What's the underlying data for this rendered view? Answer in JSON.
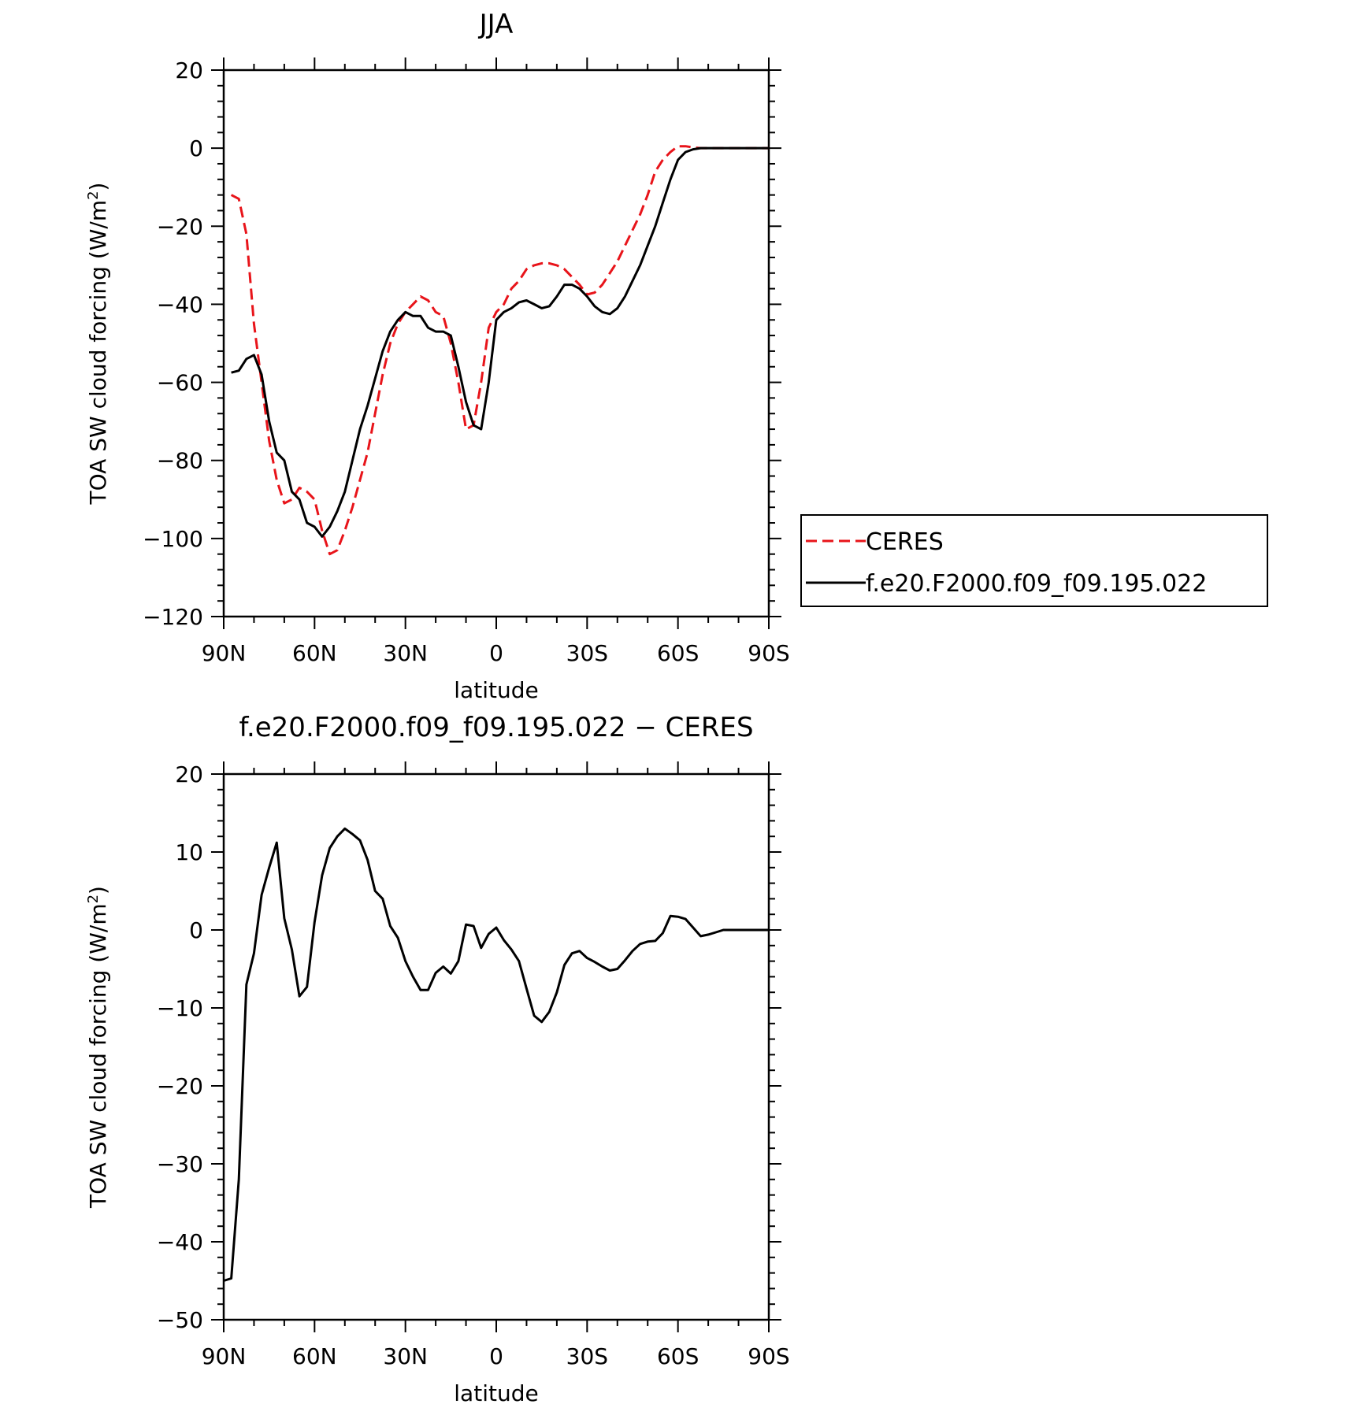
{
  "chart_data": [
    {
      "type": "line",
      "title": "JJA",
      "xlabel": "latitude",
      "ylabel": "TOA SW cloud forcing (W/m²)",
      "ylabel_main": "TOA SW cloud forcing (W/m",
      "ylabel_sup": "2",
      "ylabel_end": ")",
      "xlim": [
        90,
        -90
      ],
      "ylim": [
        -120,
        20
      ],
      "xticks": [
        90,
        60,
        30,
        0,
        -30,
        -60,
        -90
      ],
      "xtick_labels": [
        "90N",
        "60N",
        "30N",
        "0",
        "30S",
        "60S",
        "90S"
      ],
      "yticks": [
        20,
        0,
        -20,
        -40,
        -60,
        -80,
        -100,
        -120
      ],
      "ytick_labels": [
        "20",
        "0",
        "−20",
        "−40",
        "−60",
        "−80",
        "−100",
        "−120"
      ],
      "legend_position": "right",
      "series": [
        {
          "name": "CERES",
          "color": "#e8141a",
          "dash": "dashed",
          "x": [
            87.5,
            85,
            82.5,
            80,
            77.5,
            75,
            72.5,
            70,
            67.5,
            65,
            62.5,
            60,
            57.5,
            55,
            52.5,
            50,
            47.5,
            45,
            42.5,
            40,
            37.5,
            35,
            32.5,
            30,
            27.5,
            25,
            22.5,
            20,
            17.5,
            15,
            12.5,
            10,
            7.5,
            5,
            2.5,
            0,
            -2.5,
            -5,
            -7.5,
            -10,
            -12.5,
            -15,
            -17.5,
            -20,
            -22.5,
            -25,
            -27.5,
            -30,
            -32.5,
            -35,
            -37.5,
            -40,
            -42.5,
            -45,
            -47.5,
            -50,
            -52.5,
            -55,
            -57.5,
            -60,
            -62.5,
            -65,
            -67.5,
            -70,
            -72.5,
            -75,
            -77.5,
            -80,
            -82.5,
            -85,
            -87.5,
            -90
          ],
          "values": [
            -12,
            -13,
            -22,
            -45,
            -60,
            -75,
            -85,
            -91,
            -90,
            -87,
            -88,
            -90,
            -98,
            -104,
            -103,
            -98,
            -92,
            -85,
            -78,
            -68,
            -58,
            -50,
            -45,
            -42,
            -40,
            -38,
            -39,
            -42,
            -43,
            -50,
            -60,
            -72,
            -71,
            -60,
            -46,
            -42,
            -40,
            -36,
            -34,
            -31,
            -30,
            -29.5,
            -29.5,
            -30,
            -31,
            -33,
            -35,
            -37.5,
            -37,
            -35,
            -32,
            -29,
            -25,
            -21,
            -17,
            -12,
            -6,
            -3,
            -1,
            0.5,
            0.5,
            0.2,
            0,
            0,
            0,
            0,
            0,
            0,
            0,
            0,
            0,
            0
          ]
        },
        {
          "name": "f.e20.F2000.f09_f09.195.022",
          "color": "#000000",
          "dash": "solid",
          "x": [
            87.5,
            85,
            82.5,
            80,
            77.5,
            75,
            72.5,
            70,
            67.5,
            65,
            62.5,
            60,
            57.5,
            55,
            52.5,
            50,
            47.5,
            45,
            42.5,
            40,
            37.5,
            35,
            32.5,
            30,
            27.5,
            25,
            22.5,
            20,
            17.5,
            15,
            12.5,
            10,
            7.5,
            5,
            2.5,
            0,
            -2.5,
            -5,
            -7.5,
            -10,
            -12.5,
            -15,
            -17.5,
            -20,
            -22.5,
            -25,
            -27.5,
            -30,
            -32.5,
            -35,
            -37.5,
            -40,
            -42.5,
            -45,
            -47.5,
            -50,
            -52.5,
            -55,
            -57.5,
            -60,
            -62.5,
            -65,
            -67.5,
            -70,
            -72.5,
            -75,
            -77.5,
            -80,
            -82.5,
            -85,
            -87.5,
            -90
          ],
          "values": [
            -57.5,
            -57,
            -54,
            -53,
            -58,
            -70,
            -78,
            -80,
            -88,
            -90,
            -96,
            -97,
            -99.5,
            -97,
            -93,
            -88,
            -80,
            -72,
            -66,
            -59,
            -52,
            -47,
            -44,
            -42,
            -43,
            -43,
            -46,
            -47,
            -47,
            -48,
            -56,
            -65,
            -71,
            -72,
            -60,
            -44,
            -42,
            -41,
            -39.5,
            -39,
            -40,
            -41,
            -40.5,
            -38,
            -35,
            -35,
            -36,
            -38,
            -40.5,
            -42,
            -42.5,
            -41,
            -38,
            -34,
            -30,
            -25,
            -20,
            -14,
            -8,
            -3,
            -1,
            -0.3,
            0,
            0,
            0,
            0,
            0,
            0,
            0,
            0,
            0,
            0
          ]
        }
      ]
    },
    {
      "type": "line",
      "title": "f.e20.F2000.f09_f09.195.022 − CERES",
      "xlabel": "latitude",
      "ylabel": "TOA SW cloud forcing (W/m²)",
      "ylabel_main": "TOA SW cloud forcing (W/m",
      "ylabel_sup": "2",
      "ylabel_end": ")",
      "xlim": [
        90,
        -90
      ],
      "ylim": [
        -50,
        20
      ],
      "xticks": [
        90,
        60,
        30,
        0,
        -30,
        -60,
        -90
      ],
      "xtick_labels": [
        "90N",
        "60N",
        "30N",
        "0",
        "30S",
        "60S",
        "90S"
      ],
      "yticks": [
        20,
        10,
        0,
        -10,
        -20,
        -30,
        -40,
        -50
      ],
      "ytick_labels": [
        "20",
        "10",
        "0",
        "−10",
        "−20",
        "−30",
        "−40",
        "−50"
      ],
      "series": [
        {
          "color": "#000000",
          "dash": "solid",
          "x": [
            90,
            87.5,
            85,
            82.5,
            80,
            77.5,
            75,
            72.5,
            70,
            67.5,
            65,
            62.5,
            60,
            57.5,
            55,
            52.5,
            50,
            47.5,
            45,
            42.5,
            40,
            37.5,
            35,
            32.5,
            30,
            27.5,
            25,
            22.5,
            20,
            17.5,
            15,
            12.5,
            10,
            7.5,
            5,
            2.5,
            0,
            -2.5,
            -5,
            -7.5,
            -10,
            -12.5,
            -15,
            -17.5,
            -20,
            -22.5,
            -25,
            -27.5,
            -30,
            -32.5,
            -35,
            -37.5,
            -40,
            -42.5,
            -45,
            -47.5,
            -50,
            -52.5,
            -55,
            -57.5,
            -60,
            -62.5,
            -65,
            -67.5,
            -70,
            -72.5,
            -75,
            -77.5,
            -80,
            -82.5,
            -85,
            -87.5,
            -90
          ],
          "values": [
            -45,
            -44.7,
            -32,
            -7,
            -3,
            4.5,
            8,
            11.2,
            1.5,
            -2.5,
            -8.5,
            -7.3,
            1,
            7,
            10.5,
            12,
            13,
            12.3,
            11.5,
            9,
            5,
            4,
            0.5,
            -1,
            -4,
            -6,
            -7.7,
            -7.7,
            -5.5,
            -4.7,
            -5.6,
            -4,
            0.7,
            0.5,
            -2.3,
            -0.5,
            0.3,
            -1.3,
            -2.5,
            -4,
            -7.5,
            -11,
            -11.8,
            -10.5,
            -8,
            -4.5,
            -3,
            -2.7,
            -3.6,
            -4.1,
            -4.7,
            -5.2,
            -5,
            -3.9,
            -2.7,
            -1.8,
            -1.5,
            -1.4,
            -0.4,
            1.8,
            1.7,
            1.4,
            0.3,
            -0.8,
            -0.6,
            -0.3,
            0,
            0,
            0,
            0,
            0,
            0,
            0
          ]
        }
      ]
    }
  ]
}
